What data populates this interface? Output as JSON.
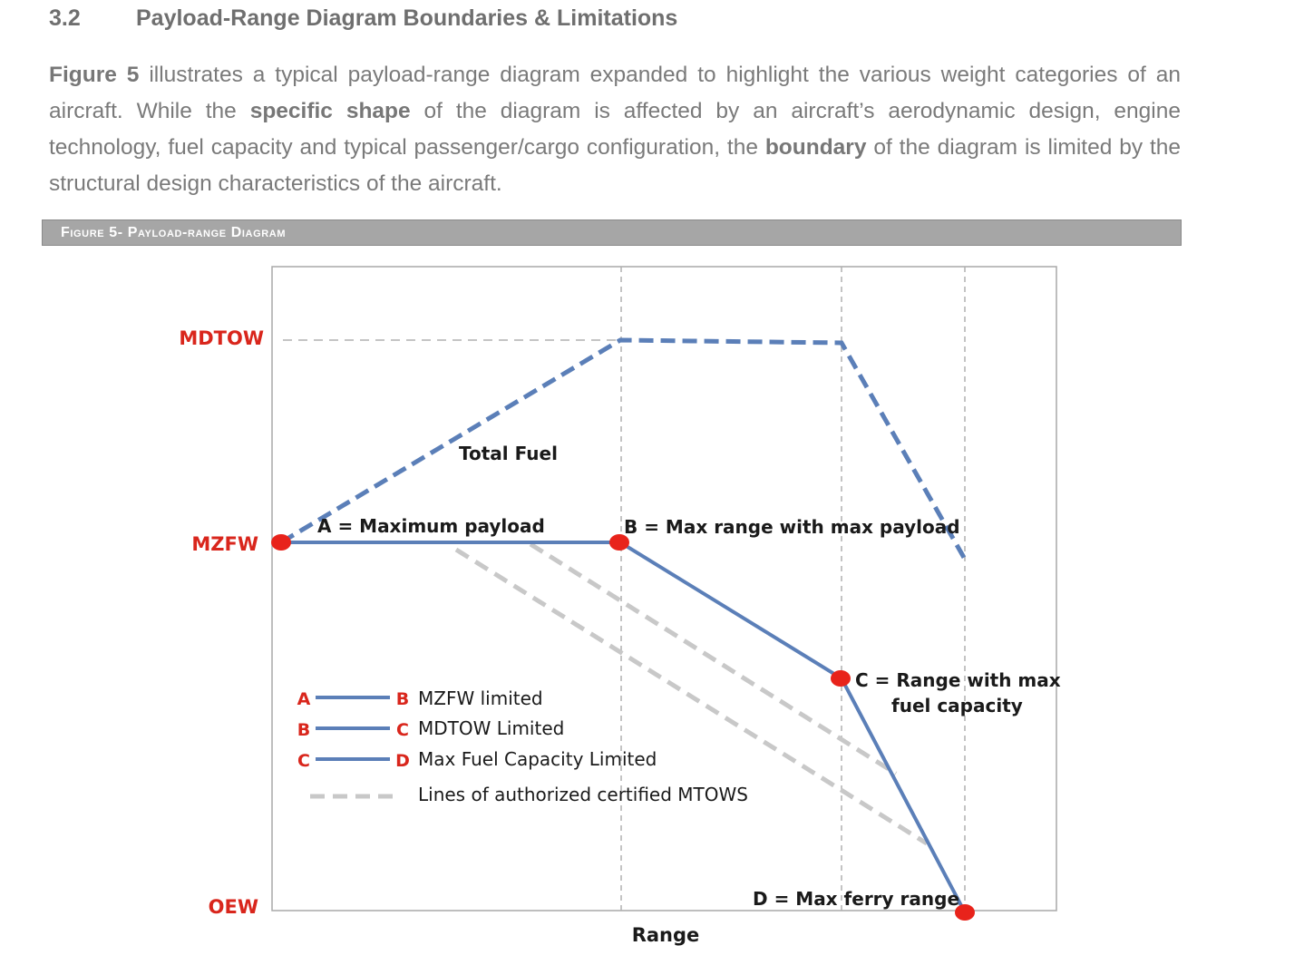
{
  "section": {
    "number": "3.2",
    "title": "Payload-Range Diagram Boundaries & Limitations"
  },
  "paragraph": {
    "figure_ref": "Figure 5",
    "t1": " illustrates a typical payload-range diagram expanded to highlight the various weight categories of an aircraft. While the ",
    "bold1": "specific shape",
    "t2": " of the diagram is affected by an aircraft’s aerodynamic design, engine technology, fuel capacity and typical passenger/cargo configuration, the ",
    "bold2": "boundary",
    "t3": " of the diagram is limited by the structural design characteristics of the aircraft."
  },
  "figure": {
    "caption": "Figure 5- Payload-range Diagram"
  },
  "diagram": {
    "y_labels": {
      "mdtow": "MDTOW",
      "mzfw": "MZFW",
      "oew": "OEW"
    },
    "x_label": "Range",
    "total_fuel": "Total Fuel",
    "points": {
      "a": "A = Maximum payload",
      "b": "B = Max range with max payload",
      "c1": "C = Range with max",
      "c2": "fuel capacity",
      "d": "D = Max ferry range"
    },
    "legend": [
      {
        "from": "A",
        "to": "B",
        "text": "MZFW limited"
      },
      {
        "from": "B",
        "to": "C",
        "text": "MDTOW Limited"
      },
      {
        "from": "C",
        "to": "D",
        "text": "Max Fuel Capacity Limited"
      },
      {
        "text": "Lines of authorized certified MTOWS"
      }
    ],
    "colors": {
      "boundary": "#5b7fb8",
      "point": "#e8231b",
      "label_red": "#d9261c",
      "mtow_lines": "#c8c8c8",
      "grid": "#b0b0b0"
    }
  }
}
